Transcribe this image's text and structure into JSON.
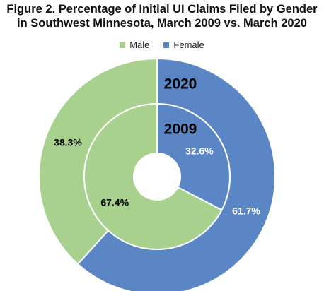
{
  "chart_data": {
    "type": "pie",
    "title_line1": "Figure 2. Percentage of Initial UI Claims Filed by Gender",
    "title_line2": "in Southwest Minnesota, March 2009 vs. March 2020",
    "legend": [
      {
        "name": "Male",
        "color": "#a9d18e"
      },
      {
        "name": "Female",
        "color": "#5b86c5"
      }
    ],
    "rings": [
      {
        "year": "2020",
        "position": "outer",
        "slices": [
          {
            "category": "Female",
            "value": 61.7,
            "label": "61.7%",
            "label_color": "#ffffff"
          },
          {
            "category": "Male",
            "value": 38.3,
            "label": "38.3%",
            "label_color": "#000000"
          }
        ]
      },
      {
        "year": "2009",
        "position": "inner",
        "slices": [
          {
            "category": "Female",
            "value": 32.6,
            "label": "32.6%",
            "label_color": "#ffffff"
          },
          {
            "category": "Male",
            "value": 67.4,
            "label": "67.4%",
            "label_color": "#000000"
          }
        ]
      }
    ]
  }
}
